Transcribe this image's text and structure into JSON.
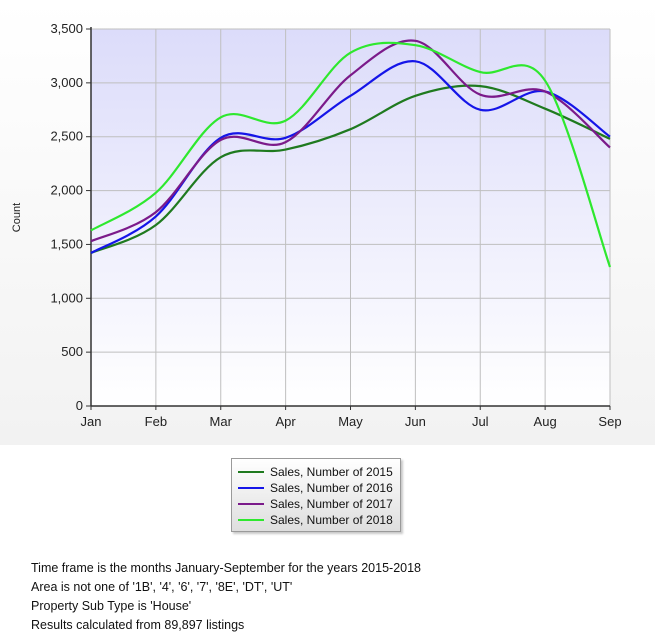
{
  "chart_data": {
    "type": "line",
    "categories": [
      "Jan",
      "Feb",
      "Mar",
      "Apr",
      "May",
      "Jun",
      "Jul",
      "Aug",
      "Sep"
    ],
    "ylabel": "Count",
    "ylim": [
      0,
      3500
    ],
    "yticks": [
      0,
      500,
      1000,
      1500,
      2000,
      2500,
      3000,
      3500
    ],
    "ytick_labels": [
      "0",
      "500",
      "1,000",
      "1,500",
      "2,000",
      "2,500",
      "3,000",
      "3,500"
    ],
    "grid": true,
    "legend_position": "bottom",
    "series": [
      {
        "name": "Sales, Number of 2015",
        "color": "#1f7a1f",
        "values": [
          1420,
          1680,
          2310,
          2380,
          2570,
          2880,
          2970,
          2760,
          2480
        ]
      },
      {
        "name": "Sales, Number of 2016",
        "color": "#1515e8",
        "values": [
          1420,
          1760,
          2490,
          2490,
          2880,
          3200,
          2750,
          2920,
          2500
        ]
      },
      {
        "name": "Sales, Number of 2017",
        "color": "#7b1a8a",
        "values": [
          1530,
          1800,
          2470,
          2450,
          3070,
          3390,
          2890,
          2920,
          2400
        ]
      },
      {
        "name": "Sales, Number of 2018",
        "color": "#2ee82e",
        "values": [
          1630,
          1980,
          2680,
          2650,
          3280,
          3350,
          3100,
          3020,
          1290
        ]
      }
    ]
  },
  "notes": [
    "Time frame is the months January-September for the years 2015-2018",
    "Area is not one of '1B', '4', '6', '7', '8E', 'DT', 'UT'",
    "Property Sub Type is 'House'",
    "Results calculated from 89,897 listings"
  ]
}
